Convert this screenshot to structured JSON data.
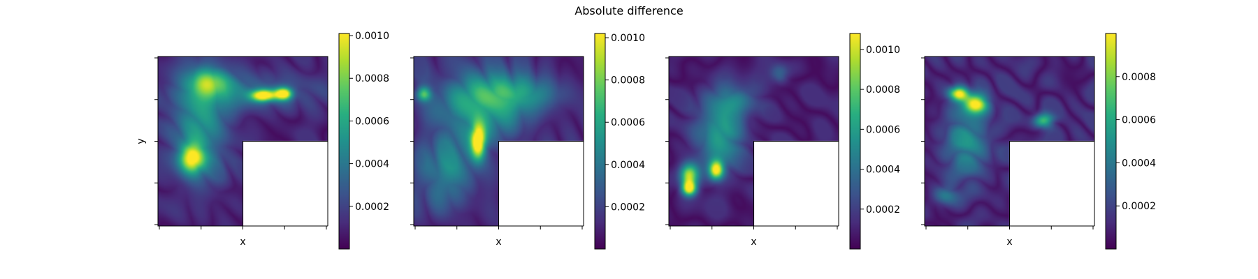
{
  "figure": {
    "suptitle": "Absolute difference"
  },
  "colormap": "viridis",
  "colors": {
    "viridis": [
      "#440154",
      "#472d7b",
      "#3b528b",
      "#2c728e",
      "#21918c",
      "#28ae80",
      "#5ec962",
      "#addc30",
      "#fde725"
    ],
    "mask": "#ffffff",
    "axis": "#000000"
  },
  "chart_data": [
    {
      "type": "heatmap",
      "xlabel": "x",
      "ylabel": "y",
      "domain_shape": "L",
      "xticklabels_shown": false,
      "yticklabels_shown": false,
      "x_ticks": 5,
      "y_ticks": 5,
      "colorbar": {
        "min": 0.0,
        "max": 0.00101,
        "ticks": [
          0.0002,
          0.0004,
          0.0006,
          0.0008,
          0.001
        ],
        "ticklabels": [
          "0.0002",
          "0.0004",
          "0.0006",
          "0.0008",
          "0.0010"
        ]
      },
      "background_level": 8e-05,
      "hotspots": [
        {
          "x": 0.62,
          "y": 0.77,
          "sx": 0.05,
          "sy": 0.025,
          "value": 0.00095
        },
        {
          "x": 0.74,
          "y": 0.78,
          "sx": 0.035,
          "sy": 0.025,
          "value": 0.0009
        },
        {
          "x": 0.2,
          "y": 0.4,
          "sx": 0.05,
          "sy": 0.06,
          "value": 0.0008
        },
        {
          "x": 0.25,
          "y": 0.6,
          "sx": 0.12,
          "sy": 0.25,
          "value": 0.00042
        },
        {
          "x": 0.3,
          "y": 0.85,
          "sx": 0.08,
          "sy": 0.06,
          "value": 0.00045
        },
        {
          "x": 0.55,
          "y": 0.8,
          "sx": 0.3,
          "sy": 0.08,
          "value": 0.00025
        }
      ]
    },
    {
      "type": "heatmap",
      "xlabel": "x",
      "ylabel": "",
      "domain_shape": "L",
      "xticklabels_shown": false,
      "yticklabels_shown": false,
      "x_ticks": 5,
      "y_ticks": 5,
      "colorbar": {
        "min": 0.0,
        "max": 0.00102,
        "ticks": [
          0.0002,
          0.0004,
          0.0006,
          0.0008,
          0.001
        ],
        "ticklabels": [
          "0.0002",
          "0.0004",
          "0.0006",
          "0.0008",
          "0.0010"
        ]
      },
      "background_level": 0.0001,
      "hotspots": [
        {
          "x": 0.38,
          "y": 0.5,
          "sx": 0.03,
          "sy": 0.07,
          "value": 0.00095
        },
        {
          "x": 0.4,
          "y": 0.7,
          "sx": 0.2,
          "sy": 0.15,
          "value": 0.00045
        },
        {
          "x": 0.06,
          "y": 0.78,
          "sx": 0.03,
          "sy": 0.03,
          "value": 0.0006
        },
        {
          "x": 0.2,
          "y": 0.3,
          "sx": 0.12,
          "sy": 0.15,
          "value": 0.00035
        },
        {
          "x": 0.62,
          "y": 0.78,
          "sx": 0.2,
          "sy": 0.07,
          "value": 0.00035
        }
      ]
    },
    {
      "type": "heatmap",
      "xlabel": "x",
      "ylabel": "",
      "domain_shape": "L",
      "xticklabels_shown": false,
      "yticklabels_shown": false,
      "x_ticks": 5,
      "y_ticks": 5,
      "colorbar": {
        "min": 0.0,
        "max": 0.00108,
        "ticks": [
          0.0002,
          0.0004,
          0.0006,
          0.0008,
          0.001
        ],
        "ticklabels": [
          "0.0002",
          "0.0004",
          "0.0006",
          "0.0008",
          "0.0010"
        ]
      },
      "background_level": 8e-05,
      "hotspots": [
        {
          "x": 0.12,
          "y": 0.3,
          "sx": 0.04,
          "sy": 0.05,
          "value": 0.0009
        },
        {
          "x": 0.28,
          "y": 0.33,
          "sx": 0.03,
          "sy": 0.04,
          "value": 0.00098
        },
        {
          "x": 0.12,
          "y": 0.22,
          "sx": 0.03,
          "sy": 0.03,
          "value": 0.0009
        },
        {
          "x": 0.3,
          "y": 0.55,
          "sx": 0.1,
          "sy": 0.15,
          "value": 0.0005
        },
        {
          "x": 0.65,
          "y": 0.9,
          "sx": 0.04,
          "sy": 0.04,
          "value": 0.0003
        },
        {
          "x": 0.4,
          "y": 0.75,
          "sx": 0.1,
          "sy": 0.06,
          "value": 0.00028
        }
      ]
    },
    {
      "type": "heatmap",
      "xlabel": "x",
      "ylabel": "",
      "domain_shape": "L",
      "xticklabels_shown": false,
      "yticklabels_shown": false,
      "x_ticks": 5,
      "y_ticks": 5,
      "colorbar": {
        "min": 0.0,
        "max": 0.001,
        "ticks": [
          0.0002,
          0.0004,
          0.0006,
          0.0008
        ],
        "ticklabels": [
          "0.0002",
          "0.0004",
          "0.0006",
          "0.0008"
        ]
      },
      "background_level": 0.0001,
      "hotspots": [
        {
          "x": 0.3,
          "y": 0.72,
          "sx": 0.05,
          "sy": 0.04,
          "value": 0.00092
        },
        {
          "x": 0.2,
          "y": 0.78,
          "sx": 0.04,
          "sy": 0.03,
          "value": 0.0009
        },
        {
          "x": 0.7,
          "y": 0.62,
          "sx": 0.04,
          "sy": 0.03,
          "value": 0.0006
        },
        {
          "x": 0.25,
          "y": 0.5,
          "sx": 0.1,
          "sy": 0.15,
          "value": 0.00035
        },
        {
          "x": 0.12,
          "y": 0.18,
          "sx": 0.05,
          "sy": 0.04,
          "value": 0.0003
        }
      ]
    }
  ]
}
